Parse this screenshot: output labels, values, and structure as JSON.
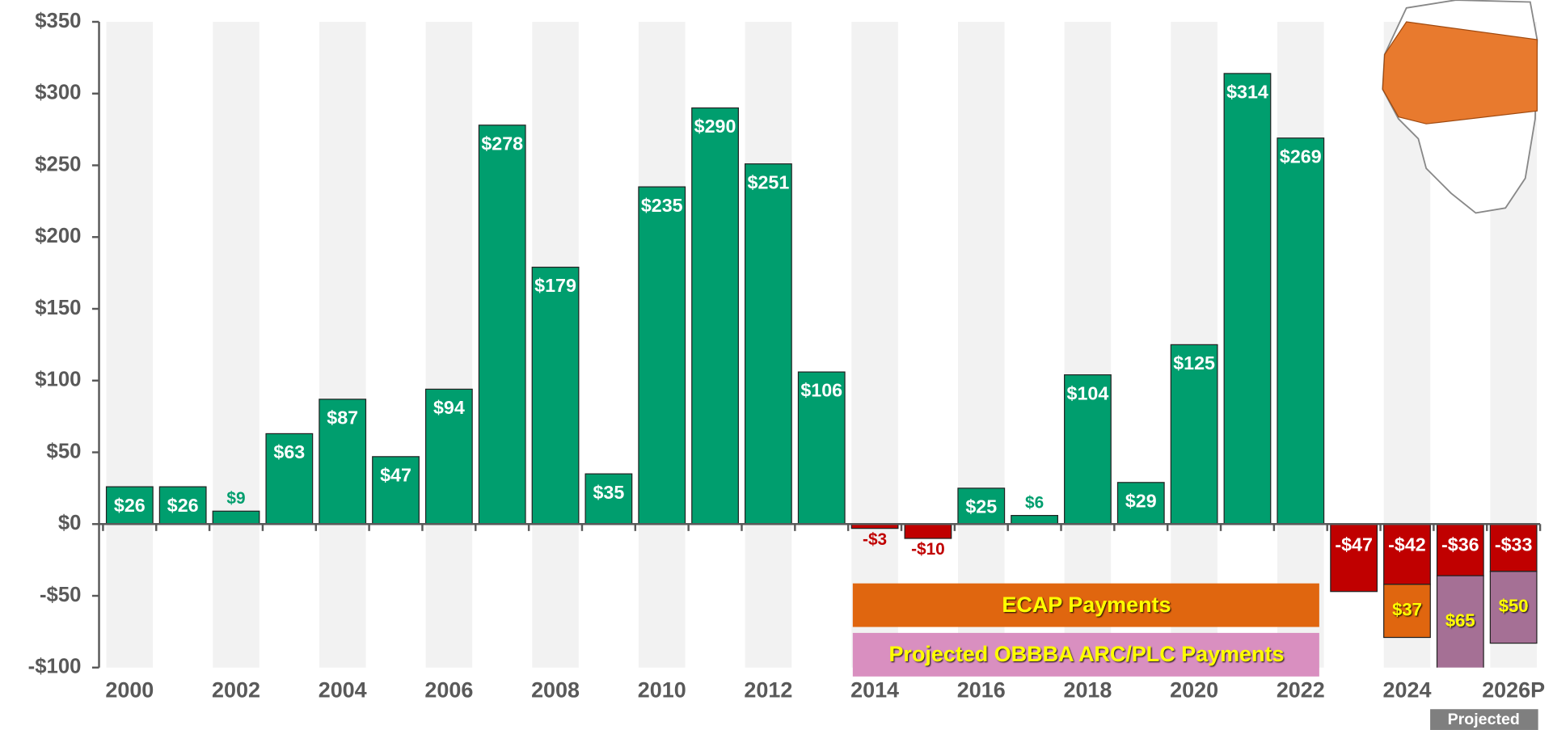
{
  "chart_data": {
    "type": "bar",
    "categories": [
      "2000",
      null,
      "2002",
      null,
      "2004",
      null,
      "2006",
      null,
      "2008",
      null,
      "2010",
      null,
      "2012",
      null,
      "2014",
      null,
      "2016",
      null,
      "2018",
      null,
      "2020",
      null,
      "2022",
      null,
      "2024",
      null,
      "2026P"
    ],
    "series": [
      {
        "color": "#009e6e",
        "negative_color": "#c00000",
        "values": [
          26,
          26,
          9,
          63,
          87,
          47,
          94,
          278,
          179,
          35,
          235,
          290,
          251,
          106,
          -3,
          -10,
          25,
          6,
          104,
          29,
          125,
          314,
          269,
          -47,
          -42,
          -36,
          -33
        ],
        "value_labels": [
          "$26",
          "$26",
          "$9",
          "$63",
          "$87",
          "$47",
          "$94",
          "$278",
          "$179",
          "$35",
          "$235",
          "$290",
          "$251",
          "$106",
          "-$3",
          "-$10",
          "$25",
          "$6",
          "$104",
          "$29",
          "$125",
          "$314",
          "$269",
          "-$47",
          "-$42",
          "-$36",
          "-$33"
        ]
      },
      {
        "name": "ECAP Payments",
        "color": "#e0660f",
        "values": [
          null,
          null,
          null,
          null,
          null,
          null,
          null,
          null,
          null,
          null,
          null,
          null,
          null,
          null,
          null,
          null,
          null,
          null,
          null,
          null,
          null,
          null,
          null,
          null,
          37,
          null,
          null
        ],
        "value_labels": [
          null,
          null,
          null,
          null,
          null,
          null,
          null,
          null,
          null,
          null,
          null,
          null,
          null,
          null,
          null,
          null,
          null,
          null,
          null,
          null,
          null,
          null,
          null,
          null,
          "$37",
          null,
          null
        ]
      },
      {
        "name": "Projected OBBBA ARC/PLC Payments",
        "color": "#a57095",
        "legend_color": "#d98fc0",
        "values": [
          null,
          null,
          null,
          null,
          null,
          null,
          null,
          null,
          null,
          null,
          null,
          null,
          null,
          null,
          null,
          null,
          null,
          null,
          null,
          null,
          null,
          null,
          null,
          null,
          null,
          65,
          50
        ],
        "value_labels": [
          null,
          null,
          null,
          null,
          null,
          null,
          null,
          null,
          null,
          null,
          null,
          null,
          null,
          null,
          null,
          null,
          null,
          null,
          null,
          null,
          null,
          null,
          null,
          null,
          null,
          "$65",
          "$50"
        ]
      }
    ],
    "ylim": [
      -100,
      350
    ],
    "yticks": [
      {
        "value": -100,
        "label": "-$100"
      },
      {
        "value": -50,
        "label": "-$50"
      },
      {
        "value": 0,
        "label": "$0"
      },
      {
        "value": 50,
        "label": "$50"
      },
      {
        "value": 100,
        "label": "$100"
      },
      {
        "value": 150,
        "label": "$150"
      },
      {
        "value": 200,
        "label": "$200"
      },
      {
        "value": 250,
        "label": "$250"
      },
      {
        "value": 300,
        "label": "$300"
      },
      {
        "value": 350,
        "label": "$350"
      }
    ],
    "annotation": "Projected"
  }
}
